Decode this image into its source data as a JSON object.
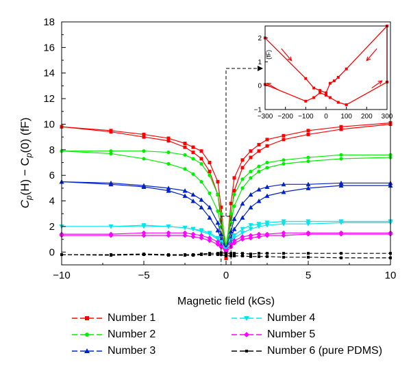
{
  "chart_data": {
    "type": "line",
    "title": "",
    "xlabel": "Magnetic field (kGs)",
    "ylabel_parts": {
      "a": "C",
      "b": "p",
      "c": "(H) − C",
      "d": "p",
      "e": "(0) (fF)"
    },
    "xlim": [
      -10,
      10
    ],
    "ylim": [
      -1,
      18
    ],
    "x_ticks": [
      "−10",
      "−5",
      "0",
      "5",
      "10"
    ],
    "y_ticks": [
      "0",
      "2",
      "4",
      "6",
      "8",
      "10",
      "12",
      "14",
      "16",
      "18"
    ],
    "grid": false,
    "legend_position": "bottom",
    "series": [
      {
        "name": "Number 1",
        "color": "#ff0000",
        "marker": "square",
        "up": [
          [
            -10,
            9.8
          ],
          [
            -7,
            9.5
          ],
          [
            -5,
            9.2
          ],
          [
            -3.5,
            8.9
          ],
          [
            -2.5,
            8.5
          ],
          [
            -2,
            8.2
          ],
          [
            -1.5,
            7.9
          ],
          [
            -1,
            7.0
          ],
          [
            -0.5,
            5.5
          ],
          [
            -0.3,
            3.5
          ],
          [
            0,
            -0.2
          ],
          [
            0.3,
            3.8
          ],
          [
            0.5,
            5.8
          ],
          [
            1,
            7.2
          ],
          [
            1.5,
            7.9
          ],
          [
            2,
            8.4
          ],
          [
            2.5,
            8.8
          ],
          [
            3.5,
            9.1
          ],
          [
            5,
            9.5
          ],
          [
            7,
            9.8
          ],
          [
            10,
            10.1
          ]
        ],
        "down": [
          [
            -10,
            9.8
          ],
          [
            -7,
            9.4
          ],
          [
            -5,
            9.0
          ],
          [
            -3.5,
            8.7
          ],
          [
            -2.5,
            8.2
          ],
          [
            -2,
            7.8
          ],
          [
            -1.5,
            7.3
          ],
          [
            -1,
            6.3
          ],
          [
            -0.5,
            4.5
          ],
          [
            -0.3,
            2.5
          ],
          [
            0,
            -0.5
          ],
          [
            0.3,
            2.8
          ],
          [
            0.5,
            4.8
          ],
          [
            1,
            6.6
          ],
          [
            1.5,
            7.4
          ],
          [
            2,
            7.9
          ],
          [
            2.5,
            8.3
          ],
          [
            3.5,
            8.8
          ],
          [
            5,
            9.2
          ],
          [
            7,
            9.6
          ],
          [
            10,
            10.0
          ]
        ]
      },
      {
        "name": "Number 2",
        "color": "#00ee00",
        "marker": "circle",
        "up": [
          [
            -10,
            7.9
          ],
          [
            -7,
            7.9
          ],
          [
            -5,
            7.9
          ],
          [
            -3.5,
            7.8
          ],
          [
            -2.5,
            7.6
          ],
          [
            -2,
            7.3
          ],
          [
            -1.5,
            6.9
          ],
          [
            -1,
            6.0
          ],
          [
            -0.5,
            4.5
          ],
          [
            -0.3,
            3.0
          ],
          [
            0,
            0.5
          ],
          [
            0.3,
            3.0
          ],
          [
            0.5,
            4.5
          ],
          [
            1,
            5.7
          ],
          [
            1.5,
            6.3
          ],
          [
            2,
            6.7
          ],
          [
            2.5,
            7.0
          ],
          [
            3.5,
            7.2
          ],
          [
            5,
            7.4
          ],
          [
            7,
            7.6
          ],
          [
            10,
            7.6
          ]
        ],
        "down": [
          [
            -10,
            7.9
          ],
          [
            -7,
            7.7
          ],
          [
            -5,
            7.3
          ],
          [
            -3.5,
            6.9
          ],
          [
            -2.5,
            6.5
          ],
          [
            -2,
            6.1
          ],
          [
            -1.5,
            5.5
          ],
          [
            -1,
            4.6
          ],
          [
            -0.5,
            3.2
          ],
          [
            -0.3,
            2.0
          ],
          [
            0,
            0.2
          ],
          [
            0.3,
            2.3
          ],
          [
            0.5,
            3.6
          ],
          [
            1,
            5.0
          ],
          [
            1.5,
            5.8
          ],
          [
            2,
            6.3
          ],
          [
            2.5,
            6.6
          ],
          [
            3.5,
            6.9
          ],
          [
            5,
            7.1
          ],
          [
            7,
            7.3
          ],
          [
            10,
            7.4
          ]
        ]
      },
      {
        "name": "Number 3",
        "color": "#0022cc",
        "marker": "triangle-up",
        "up": [
          [
            -10,
            5.5
          ],
          [
            -7,
            5.4
          ],
          [
            -5,
            5.2
          ],
          [
            -3.5,
            5.0
          ],
          [
            -2.5,
            4.8
          ],
          [
            -2,
            4.5
          ],
          [
            -1.5,
            4.1
          ],
          [
            -1,
            3.5
          ],
          [
            -0.5,
            2.3
          ],
          [
            -0.3,
            1.4
          ],
          [
            0,
            0.3
          ],
          [
            0.3,
            1.6
          ],
          [
            0.5,
            2.6
          ],
          [
            1,
            3.8
          ],
          [
            1.5,
            4.5
          ],
          [
            2,
            4.9
          ],
          [
            2.5,
            5.1
          ],
          [
            3.5,
            5.3
          ],
          [
            5,
            5.3
          ],
          [
            7,
            5.4
          ],
          [
            10,
            5.4
          ]
        ],
        "down": [
          [
            -10,
            5.5
          ],
          [
            -7,
            5.3
          ],
          [
            -5,
            5.1
          ],
          [
            -3.5,
            4.8
          ],
          [
            -2.5,
            4.4
          ],
          [
            -2,
            4.0
          ],
          [
            -1.5,
            3.5
          ],
          [
            -1,
            2.7
          ],
          [
            -0.5,
            1.7
          ],
          [
            -0.3,
            1.0
          ],
          [
            0,
            0.2
          ],
          [
            0.3,
            1.1
          ],
          [
            0.5,
            1.8
          ],
          [
            1,
            2.7
          ],
          [
            1.5,
            3.5
          ],
          [
            2,
            4.0
          ],
          [
            2.5,
            4.4
          ],
          [
            3.5,
            4.7
          ],
          [
            5,
            5.0
          ],
          [
            7,
            5.2
          ],
          [
            10,
            5.2
          ]
        ]
      },
      {
        "name": "Number 4",
        "color": "#00e5ee",
        "marker": "triangle-down",
        "up": [
          [
            -10,
            2.0
          ],
          [
            -7,
            2.0
          ],
          [
            -5,
            2.0
          ],
          [
            -3.5,
            2.0
          ],
          [
            -2.5,
            1.9
          ],
          [
            -2,
            1.8
          ],
          [
            -1.5,
            1.7
          ],
          [
            -1,
            1.5
          ],
          [
            -0.5,
            1.1
          ],
          [
            -0.3,
            0.8
          ],
          [
            0,
            0.2
          ],
          [
            0.3,
            0.9
          ],
          [
            0.5,
            1.3
          ],
          [
            1,
            1.8
          ],
          [
            1.5,
            2.1
          ],
          [
            2,
            2.2
          ],
          [
            2.5,
            2.3
          ],
          [
            3.5,
            2.4
          ],
          [
            5,
            2.4
          ],
          [
            7,
            2.4
          ],
          [
            10,
            2.4
          ]
        ],
        "down": [
          [
            -10,
            2.0
          ],
          [
            -7,
            2.0
          ],
          [
            -5,
            2.1
          ],
          [
            -3.5,
            2.0
          ],
          [
            -2.5,
            1.9
          ],
          [
            -2,
            1.8
          ],
          [
            -1.5,
            1.6
          ],
          [
            -1,
            1.4
          ],
          [
            -0.5,
            1.0
          ],
          [
            -0.3,
            0.7
          ],
          [
            0,
            0.2
          ],
          [
            0.3,
            0.8
          ],
          [
            0.5,
            1.1
          ],
          [
            1,
            1.5
          ],
          [
            1.5,
            1.8
          ],
          [
            2,
            2.0
          ],
          [
            2.5,
            2.1
          ],
          [
            3.5,
            2.2
          ],
          [
            5,
            2.2
          ],
          [
            7,
            2.3
          ],
          [
            10,
            2.3
          ]
        ]
      },
      {
        "name": "Number 5",
        "color": "#ff00ff",
        "marker": "diamond",
        "up": [
          [
            -10,
            1.4
          ],
          [
            -7,
            1.4
          ],
          [
            -5,
            1.5
          ],
          [
            -3.5,
            1.5
          ],
          [
            -2.5,
            1.5
          ],
          [
            -2,
            1.4
          ],
          [
            -1.5,
            1.3
          ],
          [
            -1,
            1.1
          ],
          [
            -0.5,
            0.8
          ],
          [
            -0.3,
            0.5
          ],
          [
            0,
            0.1
          ],
          [
            0.3,
            0.6
          ],
          [
            0.5,
            0.9
          ],
          [
            1,
            1.2
          ],
          [
            1.5,
            1.3
          ],
          [
            2,
            1.4
          ],
          [
            2.5,
            1.4
          ],
          [
            3.5,
            1.5
          ],
          [
            5,
            1.5
          ],
          [
            7,
            1.5
          ],
          [
            10,
            1.5
          ]
        ],
        "down": [
          [
            -10,
            1.3
          ],
          [
            -7,
            1.3
          ],
          [
            -5,
            1.3
          ],
          [
            -3.5,
            1.3
          ],
          [
            -2.5,
            1.3
          ],
          [
            -2,
            1.2
          ],
          [
            -1.5,
            1.1
          ],
          [
            -1,
            0.9
          ],
          [
            -0.5,
            0.6
          ],
          [
            -0.3,
            0.4
          ],
          [
            0,
            0.0
          ],
          [
            0.3,
            0.4
          ],
          [
            0.5,
            0.7
          ],
          [
            1,
            1.0
          ],
          [
            1.5,
            1.1
          ],
          [
            2,
            1.2
          ],
          [
            2.5,
            1.3
          ],
          [
            3.5,
            1.3
          ],
          [
            5,
            1.4
          ],
          [
            7,
            1.4
          ],
          [
            10,
            1.4
          ]
        ]
      },
      {
        "name": "Number 6 (pure PDMS)",
        "color": "#000000",
        "marker": "square-small",
        "dashed": true,
        "up": [
          [
            -10,
            -0.2
          ],
          [
            -7,
            -0.2
          ],
          [
            -5,
            -0.15
          ],
          [
            -3.5,
            -0.2
          ],
          [
            -2.5,
            -0.2
          ],
          [
            -2,
            -0.2
          ],
          [
            -1.5,
            -0.15
          ],
          [
            -1,
            -0.1
          ],
          [
            -0.5,
            -0.1
          ],
          [
            -0.3,
            -0.05
          ],
          [
            0,
            -0.1
          ],
          [
            0.3,
            -0.1
          ],
          [
            0.5,
            -0.1
          ],
          [
            1,
            -0.1
          ],
          [
            1.5,
            -0.15
          ],
          [
            2,
            -0.1
          ],
          [
            2.5,
            -0.1
          ],
          [
            3.5,
            -0.1
          ],
          [
            5,
            -0.1
          ],
          [
            7,
            -0.1
          ],
          [
            10,
            -0.1
          ]
        ],
        "down": [
          [
            -10,
            -0.2
          ],
          [
            -7,
            -0.25
          ],
          [
            -5,
            -0.2
          ],
          [
            -3.5,
            -0.25
          ],
          [
            -2.5,
            -0.25
          ],
          [
            -2,
            -0.25
          ],
          [
            -1.5,
            -0.2
          ],
          [
            -1,
            -0.2
          ],
          [
            -0.5,
            -0.2
          ],
          [
            -0.3,
            -0.2
          ],
          [
            0,
            -0.3
          ],
          [
            0.3,
            -0.3
          ],
          [
            0.5,
            -0.3
          ],
          [
            1,
            -0.3
          ],
          [
            1.5,
            -0.35
          ],
          [
            2,
            -0.35
          ],
          [
            2.5,
            -0.35
          ],
          [
            3.5,
            -0.4
          ],
          [
            5,
            -0.4
          ],
          [
            7,
            -0.45
          ],
          [
            10,
            -0.45
          ]
        ]
      }
    ],
    "inset": {
      "xlim": [
        -300,
        300
      ],
      "ylim": [
        -1,
        2.5
      ],
      "x_ticks": [
        "−300",
        "−200",
        "−100",
        "0",
        "100",
        "200",
        "300"
      ],
      "y_ticks": [
        "−1",
        "0",
        "1",
        "2"
      ],
      "ylabel": "(fF)",
      "color": "#ff0000",
      "points": [
        [
          -300,
          2.0
        ],
        [
          -100,
          0.3
        ],
        [
          -60,
          -0.1
        ],
        [
          -30,
          -0.2
        ],
        [
          0,
          -0.3
        ],
        [
          20,
          0.1
        ],
        [
          40,
          0.2
        ],
        [
          60,
          0.35
        ],
        [
          100,
          0.7
        ],
        [
          300,
          2.5
        ],
        [
          300,
          0.15
        ],
        [
          100,
          -0.8
        ],
        [
          60,
          -0.7
        ],
        [
          20,
          -0.5
        ],
        [
          0,
          -0.4
        ],
        [
          -30,
          -0.3
        ],
        [
          -60,
          -0.5
        ],
        [
          -100,
          -0.65
        ],
        [
          -300,
          0.05
        ]
      ],
      "zoom_box": {
        "x": [
          -0.3,
          0.3
        ],
        "y": [
          -1,
          2.8
        ]
      }
    }
  }
}
